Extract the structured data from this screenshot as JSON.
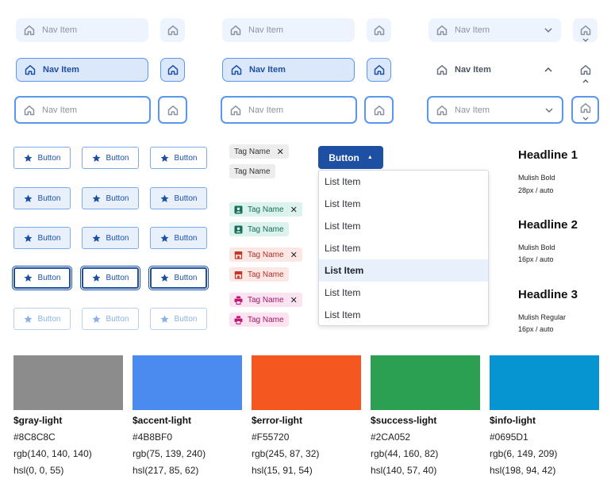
{
  "nav": {
    "label": "Nav Item",
    "home_icon": "home-icon",
    "chevron_icon": "chevron-down-icon"
  },
  "buttons": {
    "label": "Button",
    "icon": "star-icon"
  },
  "tags": {
    "label": "Tag Name",
    "remove_glyph": "✕",
    "icons": [
      "contact-icon",
      "store-icon",
      "printer-icon"
    ]
  },
  "dropdown": {
    "button_label": "Button",
    "caret": "▲",
    "items": [
      "List Item",
      "List Item",
      "List Item",
      "List Item",
      "List Item",
      "List Item",
      "List Item"
    ],
    "selected_index": 4
  },
  "typography": [
    {
      "headline": "Headline 1",
      "font": "Mulish Bold",
      "size": "28px / auto"
    },
    {
      "headline": "Headline 2",
      "font": "Mulish Bold",
      "size": "16px / auto"
    },
    {
      "headline": "Headline 3",
      "font": "Mulish Regular",
      "size": "16px / auto"
    }
  ],
  "colors": [
    {
      "name": "$gray-light",
      "hex": "#8C8C8C",
      "rgb": "rgb(140, 140, 140)",
      "hsl": "hsl(0, 0, 55)"
    },
    {
      "name": "$accent-light",
      "hex": "#4B8BF0",
      "rgb": "rgb(75, 139, 240)",
      "hsl": "hsl(217, 85, 62)"
    },
    {
      "name": "$error-light",
      "hex": "#F55720",
      "rgb": "rgb(245, 87, 32)",
      "hsl": "hsl(15, 91, 54)"
    },
    {
      "name": "$success-light",
      "hex": "#2CA052",
      "rgb": "rgb(44, 160, 82)",
      "hsl": "hsl(140, 57, 40)"
    },
    {
      "name": "$info-light",
      "hex": "#0695D1",
      "rgb": "rgb(6, 149, 209)",
      "hsl": "hsl(198, 94, 42)"
    }
  ]
}
